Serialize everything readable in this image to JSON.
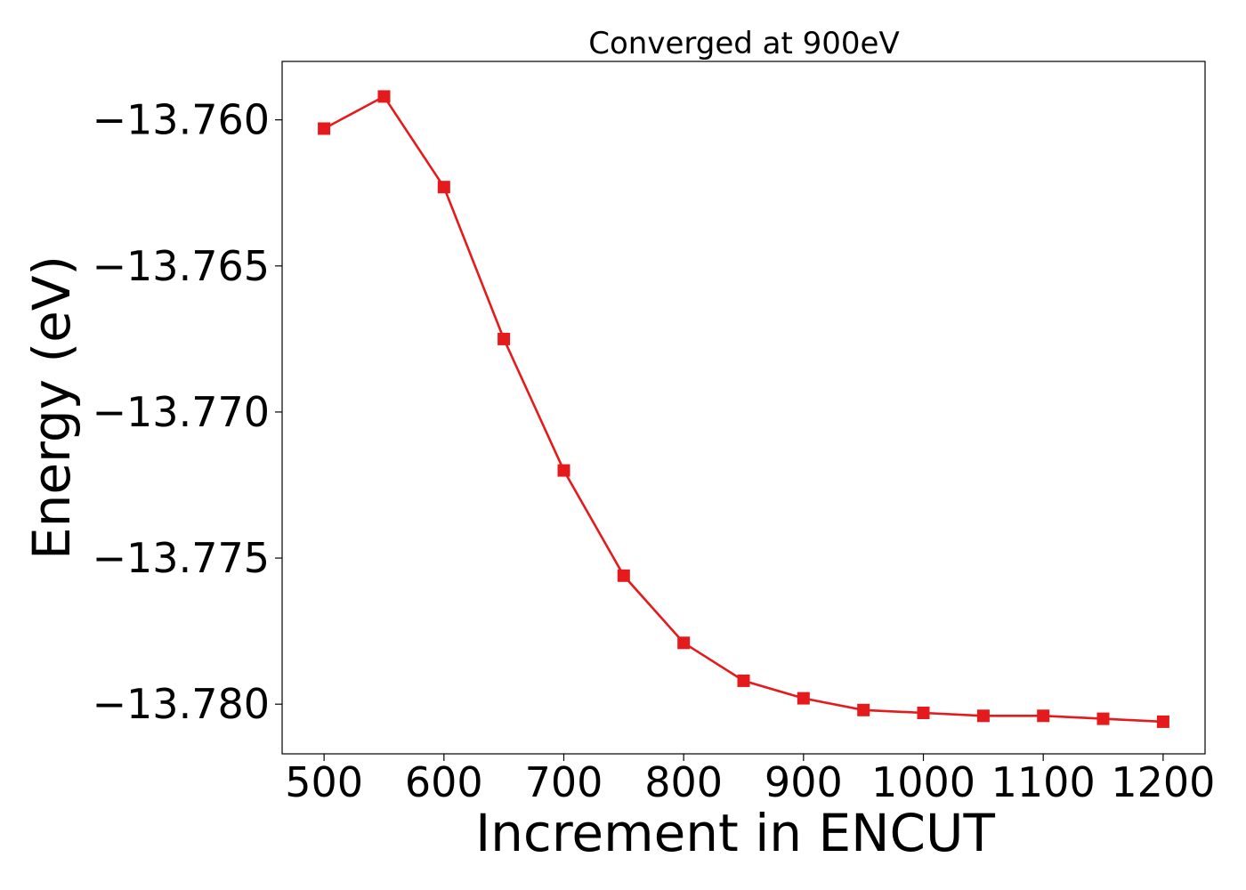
{
  "chart_data": {
    "type": "line",
    "title": "Converged at 900eV",
    "xlabel": "Increment in ENCUT",
    "ylabel": "Energy (eV)",
    "xlim": [
      465,
      1235
    ],
    "ylim": [
      -13.7817,
      -13.758
    ],
    "xticks": [
      500,
      600,
      700,
      800,
      900,
      1000,
      1100,
      1200
    ],
    "xtick_labels": [
      "500",
      "600",
      "700",
      "800",
      "900",
      "1000",
      "1100",
      "1200"
    ],
    "yticks": [
      -13.76,
      -13.765,
      -13.77,
      -13.775,
      -13.78
    ],
    "ytick_labels": [
      "−13.760",
      "−13.765",
      "−13.770",
      "−13.775",
      "−13.780"
    ],
    "grid": false,
    "color": "#e41a1c",
    "marker": "square",
    "x": [
      500,
      550,
      600,
      650,
      700,
      750,
      800,
      850,
      900,
      950,
      1000,
      1050,
      1100,
      1150,
      1200
    ],
    "y": [
      -13.7603,
      -13.7592,
      -13.7623,
      -13.7675,
      -13.772,
      -13.7756,
      -13.7779,
      -13.7792,
      -13.7798,
      -13.7802,
      -13.7803,
      -13.7804,
      -13.7804,
      -13.7805,
      -13.7806
    ]
  }
}
